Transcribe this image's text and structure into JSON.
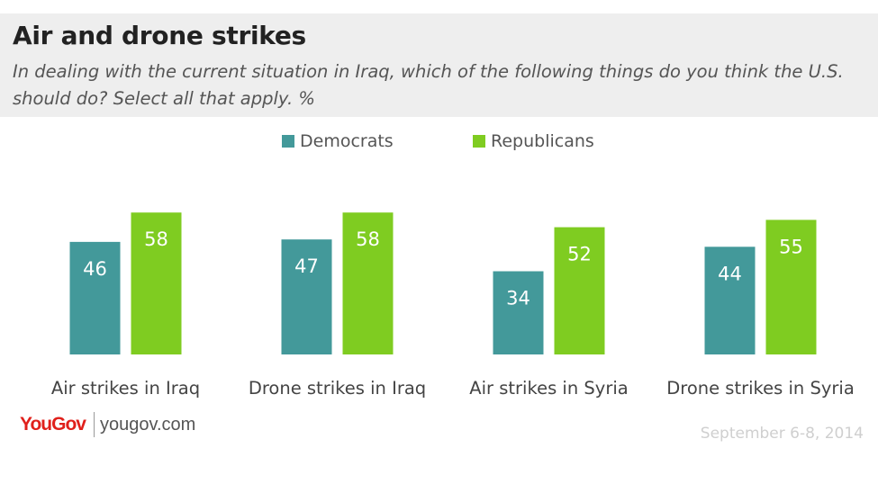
{
  "title": "Air and drone strikes",
  "subtitle": "In dealing with the current situation in Iraq, which of the following things do you think the U.S. should do? Select all that apply. %",
  "brand": {
    "logo": "YouGov",
    "url": "yougov.com"
  },
  "date": "September 6-8, 2014",
  "colors": {
    "democrats": "#43999a",
    "republicans": "#7fcc21",
    "header_bg": "#eeeeee"
  },
  "chart_data": {
    "type": "bar",
    "categories": [
      "Air strikes in Iraq",
      "Drone strikes in Iraq",
      "Air strikes in Syria",
      "Drone strikes in Syria"
    ],
    "series": [
      {
        "name": "Democrats",
        "values": [
          46,
          47,
          34,
          44
        ],
        "color": "#43999a"
      },
      {
        "name": "Republicans",
        "values": [
          58,
          58,
          52,
          55
        ],
        "color": "#7fcc21"
      }
    ],
    "ylim": [
      0,
      60
    ],
    "grid": false,
    "legend": "top-center"
  }
}
